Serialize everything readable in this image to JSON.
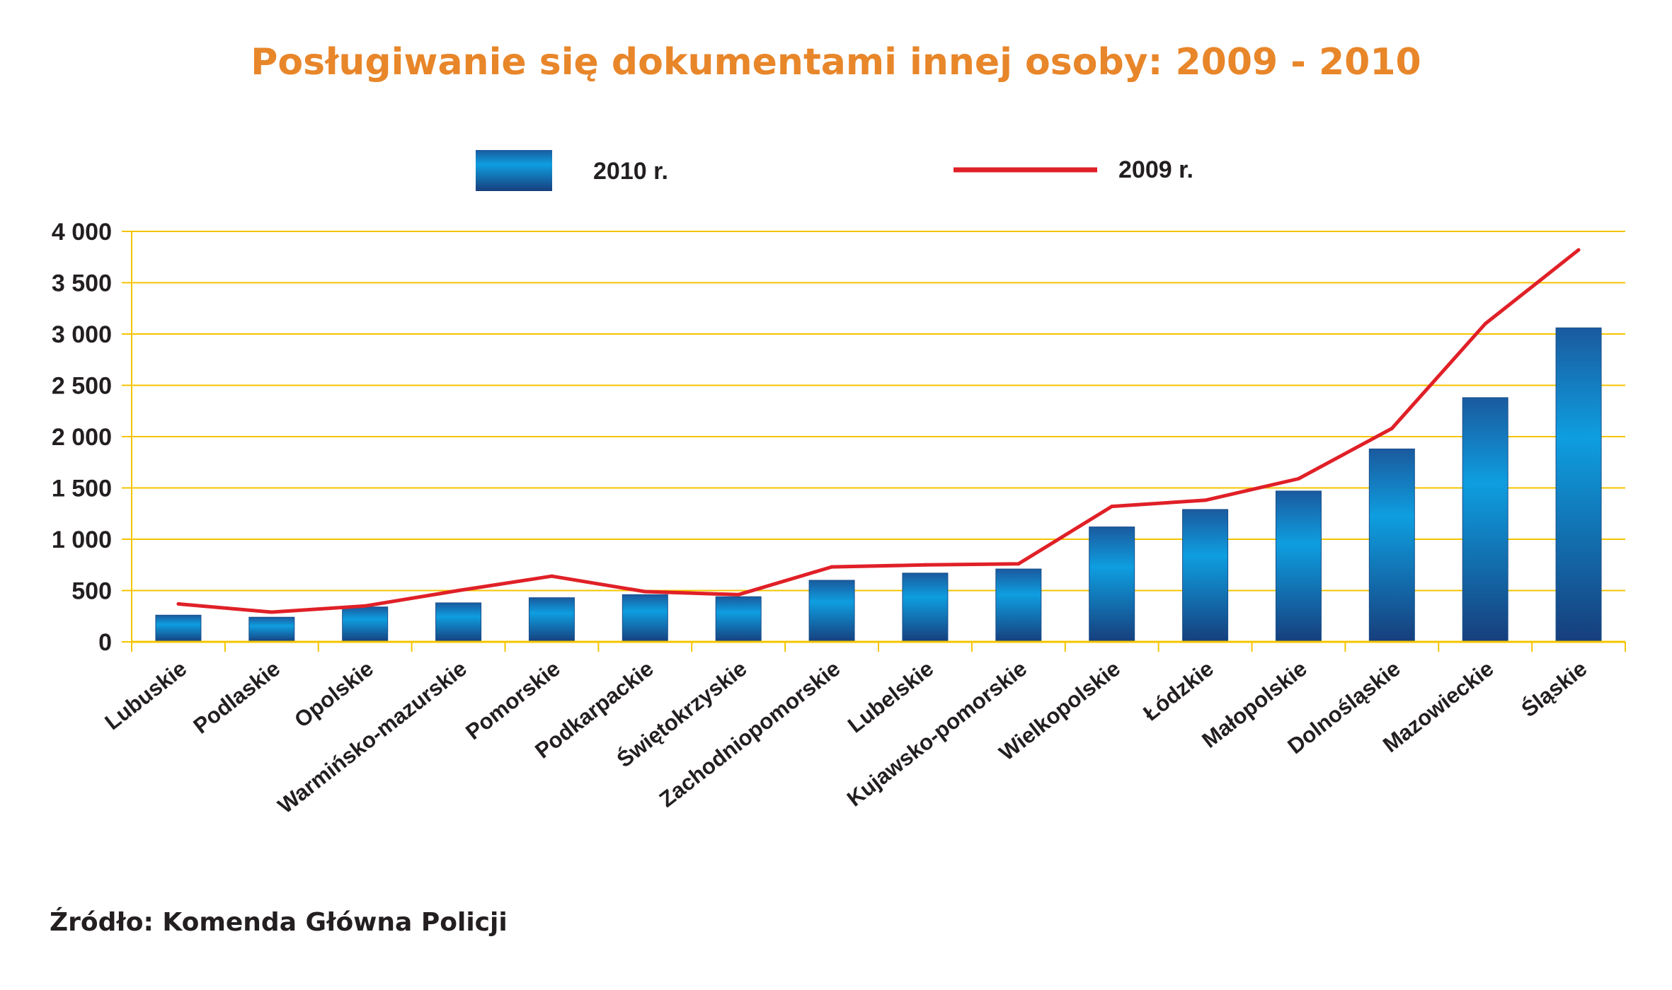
{
  "chart_data": {
    "type": "bar",
    "title": "Posługiwanie się dokumentami innej osoby: 2009 - 2010",
    "categories": [
      "Lubuskie",
      "Podlaskie",
      "Opolskie",
      "Warmińsko-mazurskie",
      "Pomorskie",
      "Podkarpackie",
      "Świętokrzyskie",
      "Zachodniopomorskie",
      "Lubelskie",
      "Kujawsko-pomorskie",
      "Wielkopolskie",
      "Łódzkie",
      "Małopolskie",
      "Dolnośląskie",
      "Mazowieckie",
      "Śląskie"
    ],
    "series": [
      {
        "name": "2010 r.",
        "type": "bar",
        "values": [
          260,
          240,
          340,
          380,
          430,
          460,
          440,
          600,
          670,
          710,
          1120,
          1290,
          1470,
          1880,
          2380,
          3060
        ]
      },
      {
        "name": "2009 r.",
        "type": "line",
        "values": [
          370,
          290,
          350,
          500,
          640,
          490,
          460,
          730,
          750,
          760,
          1320,
          1380,
          1590,
          2080,
          3100,
          3820
        ]
      }
    ],
    "ylim": [
      0,
      4000
    ],
    "yticks": [
      0,
      500,
      1000,
      1500,
      2000,
      2500,
      3000,
      3500,
      4000
    ],
    "ytick_labels": [
      "0",
      "500",
      "1 000",
      "1 500",
      "2 000",
      "2 500",
      "3 000",
      "3 500",
      "4 000"
    ],
    "grid": true,
    "legend": "top",
    "colors": {
      "bar_top": "#1a5a9e",
      "bar_mid": "#0e9ee0",
      "bar_bottom": "#173e7c",
      "line": "#e02027",
      "grid": "#f5c400",
      "title": "#e8862a"
    }
  },
  "footer": {
    "source": "Źródło: Komenda Główna Policji"
  }
}
